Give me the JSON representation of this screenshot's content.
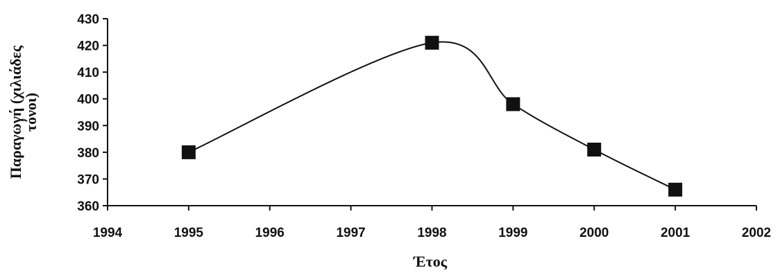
{
  "chart_data": {
    "type": "line",
    "x_label": "Έτος",
    "y_label": [
      "Παραγωγή (χιλιάδες",
      "τόνοι)"
    ],
    "x": [
      1995,
      1998,
      1999,
      2000,
      2001
    ],
    "series": [
      {
        "color": "#111111",
        "values": [
          380,
          421,
          398,
          381,
          366
        ]
      }
    ],
    "xlim": [
      1994,
      2002
    ],
    "xticks": [
      1994,
      1995,
      1996,
      1997,
      1998,
      1999,
      2000,
      2001,
      2002
    ],
    "ylim": [
      360,
      430
    ],
    "yticks": [
      360,
      370,
      380,
      390,
      400,
      410,
      420,
      430
    ],
    "smooth": true,
    "marker": "square",
    "grid": false
  }
}
